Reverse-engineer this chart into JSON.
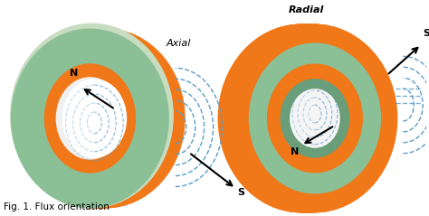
{
  "bg_color": "#ffffff",
  "orange_color": "#F07818",
  "green_color": "#8BBF96",
  "green_light": "#C8DCC0",
  "green_dark": "#6A9E78",
  "white_hole": "#ffffff",
  "flux_color": "#5B9DC8",
  "title_text": "Fig. 1. Flux orientation",
  "label_axial": "Axial",
  "label_radial": "Radial",
  "figsize": [
    4.74,
    2.39
  ],
  "dpi": 100
}
